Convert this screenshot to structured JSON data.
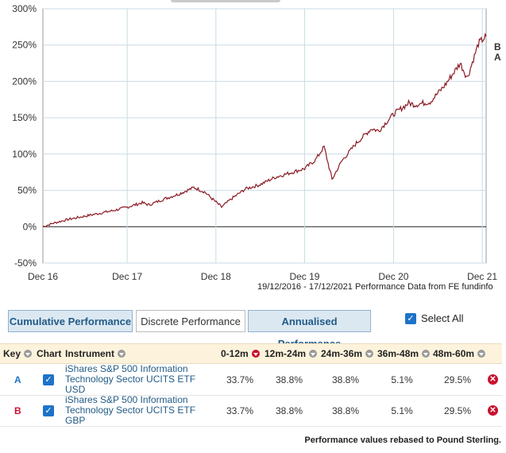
{
  "chart_data": {
    "type": "line",
    "ylim": [
      -50,
      300
    ],
    "y_ticks": [
      "300%",
      "250%",
      "200%",
      "150%",
      "100%",
      "50%",
      "0%",
      "-50%"
    ],
    "x_ticks": [
      "Dec 16",
      "Dec 17",
      "Dec 18",
      "Dec 19",
      "Dec 20",
      "Dec 21"
    ],
    "grid": true,
    "end_labels": [
      "B",
      "A"
    ],
    "series": [
      {
        "color": "#8b1a24",
        "x": [
          "2016-12-19",
          "2017-02-01",
          "2017-04-01",
          "2017-06-01",
          "2017-08-01",
          "2017-10-01",
          "2017-12-01",
          "2018-02-01",
          "2018-03-01",
          "2018-05-01",
          "2018-07-01",
          "2018-09-01",
          "2018-10-15",
          "2018-12-24",
          "2019-02-01",
          "2019-04-01",
          "2019-06-01",
          "2019-08-01",
          "2019-10-01",
          "2019-12-01",
          "2020-01-15",
          "2020-02-19",
          "2020-03-23",
          "2020-05-01",
          "2020-07-01",
          "2020-09-01",
          "2020-10-01",
          "2020-12-01",
          "2021-02-01",
          "2021-03-01",
          "2021-05-01",
          "2021-07-01",
          "2021-09-01",
          "2021-10-01",
          "2021-11-15",
          "2021-12-17"
        ],
        "values": [
          0,
          5,
          10,
          14,
          18,
          22,
          27,
          33,
          30,
          38,
          45,
          54,
          48,
          27,
          38,
          52,
          58,
          68,
          74,
          80,
          92,
          110,
          65,
          90,
          115,
          135,
          132,
          155,
          170,
          168,
          172,
          195,
          225,
          205,
          252,
          262
        ]
      }
    ]
  },
  "chart_source": "19/12/2016 - 17/12/2021 Performance Data from FE fundinfo",
  "tabs": [
    {
      "label": "Cumulative Performance",
      "active": false
    },
    {
      "label": "Discrete Performance",
      "active": true
    },
    {
      "label": "Annualised Performance",
      "active": false
    }
  ],
  "select_all": {
    "label": "Select All",
    "checked": true
  },
  "table": {
    "headers": {
      "key": "Key",
      "chart": "Chart",
      "instrument": "Instrument",
      "c1": "0-12m",
      "c2": "12m-24m",
      "c3": "24m-36m",
      "c4": "36m-48m",
      "c5": "48m-60m"
    },
    "rows": [
      {
        "key": "A",
        "key_color": "#1d73c9",
        "instrument_line1": "iShares S&P 500 Information",
        "instrument_line2": "Technology Sector UCITS ETF USD",
        "v1": "33.7%",
        "v2": "38.8%",
        "v3": "38.8%",
        "v4": "5.1%",
        "v5": "29.5%"
      },
      {
        "key": "B",
        "key_color": "#c8102e",
        "instrument_line1": "iShares S&P 500 Information",
        "instrument_line2": "Technology Sector UCITS ETF GBP",
        "v1": "33.7%",
        "v2": "38.8%",
        "v3": "38.8%",
        "v4": "5.1%",
        "v5": "29.5%"
      }
    ]
  },
  "footnote": "Performance values rebased to Pound Sterling."
}
